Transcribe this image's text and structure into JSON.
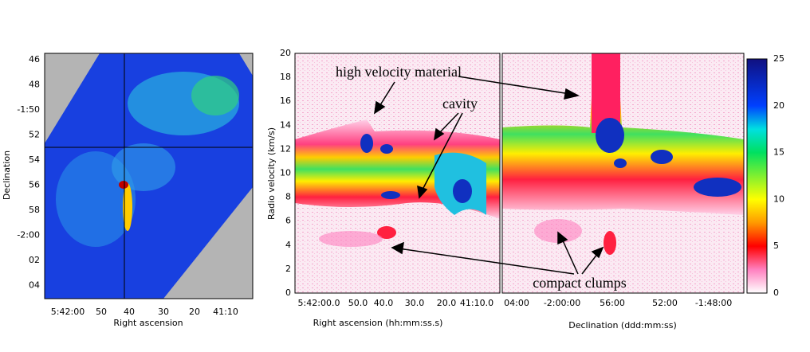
{
  "panels": [
    {
      "xlabel": "Right ascension",
      "ylabel": "Declination",
      "xticks": [
        "5:42:00",
        "50",
        "40",
        "30",
        "20",
        "41:10"
      ],
      "yticks": [
        "46",
        "48",
        "-1:50",
        "52",
        "54",
        "56",
        "58",
        "-2:00",
        "02",
        "04"
      ]
    },
    {
      "xlabel": "Right ascension (hh:mm:ss.s)",
      "ylabel": "Radio velocity (km/s)",
      "xticks": [
        "5:42:00.0",
        "50.0",
        "40.0",
        "30.0",
        "20.0",
        "41:10.0"
      ],
      "yticks": [
        "0",
        "2",
        "4",
        "6",
        "8",
        "10",
        "12",
        "14",
        "16",
        "18",
        "20"
      ]
    },
    {
      "xlabel": "Declination (ddd:mm:ss)",
      "xticks": [
        "04:00",
        "-2:00:00",
        "56:00",
        "52:00",
        "-1:48:00"
      ]
    }
  ],
  "colorbar": {
    "ticks": [
      "0",
      "5",
      "10",
      "15",
      "20",
      "25"
    ]
  },
  "annotations": [
    "high velocity material",
    "cavity",
    "compact clumps"
  ]
}
